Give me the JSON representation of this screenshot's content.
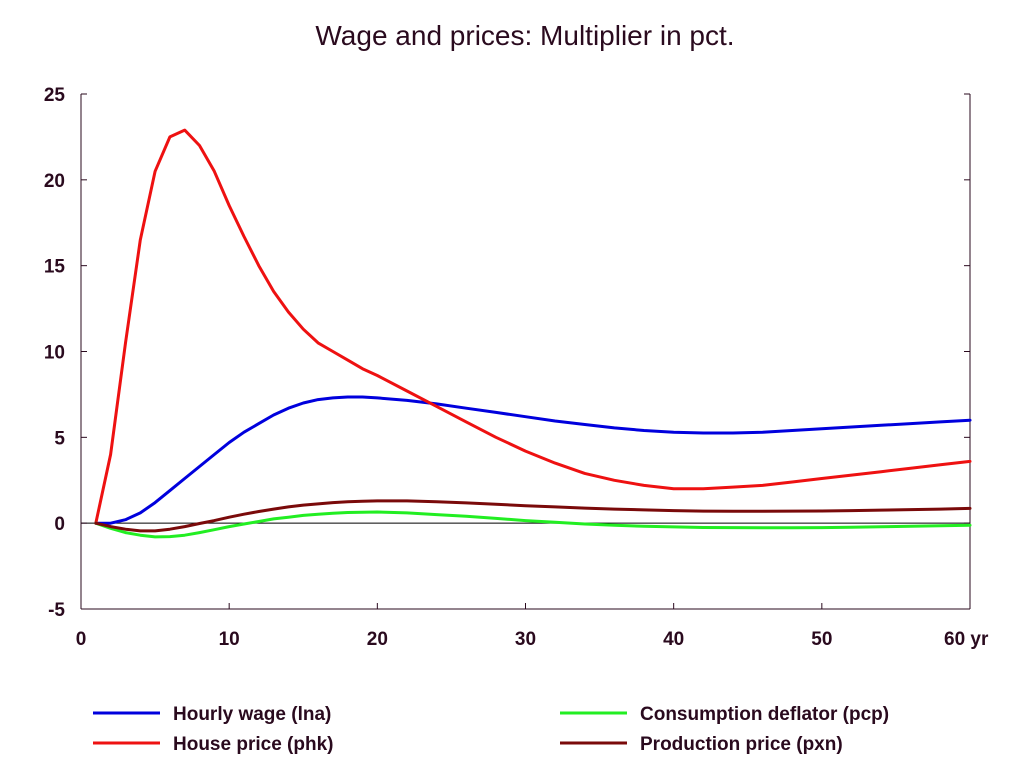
{
  "chart_data": {
    "type": "line",
    "title": "Wage and prices: Multiplier in pct.",
    "xlabel": "",
    "ylabel": "",
    "x_unit_label": "yr",
    "xlim": [
      0,
      60
    ],
    "ylim": [
      -5,
      25
    ],
    "x_ticks": [
      0,
      10,
      20,
      30,
      40,
      50,
      60
    ],
    "y_ticks": [
      -5,
      0,
      5,
      10,
      15,
      20,
      25
    ],
    "x_tick_labels": [
      "0",
      "10",
      "20",
      "30",
      "40",
      "50",
      "60 yr"
    ],
    "y_tick_labels": [
      "-5",
      "0",
      "5",
      "10",
      "15",
      "20",
      "25"
    ],
    "grid": false,
    "zero_line": true,
    "legend_position": "bottom",
    "series": [
      {
        "name": "Hourly wage (lna)",
        "color": "#0000dd",
        "x": [
          1,
          2,
          3,
          4,
          5,
          6,
          7,
          8,
          9,
          10,
          11,
          12,
          13,
          14,
          15,
          16,
          17,
          18,
          19,
          20,
          22,
          24,
          26,
          28,
          30,
          32,
          34,
          36,
          38,
          40,
          42,
          44,
          46,
          48,
          50,
          52,
          54,
          56,
          58,
          60
        ],
        "values": [
          0,
          0,
          0.2,
          0.6,
          1.2,
          1.9,
          2.6,
          3.3,
          4.0,
          4.7,
          5.3,
          5.8,
          6.3,
          6.7,
          7.0,
          7.2,
          7.3,
          7.35,
          7.35,
          7.3,
          7.15,
          6.95,
          6.7,
          6.45,
          6.2,
          5.95,
          5.75,
          5.55,
          5.4,
          5.3,
          5.25,
          5.25,
          5.3,
          5.4,
          5.5,
          5.6,
          5.7,
          5.8,
          5.9,
          6.0
        ]
      },
      {
        "name": "House price (phk)",
        "color": "#ee1111",
        "x": [
          1,
          2,
          3,
          4,
          5,
          6,
          7,
          8,
          9,
          10,
          11,
          12,
          13,
          14,
          15,
          16,
          17,
          18,
          19,
          20,
          22,
          24,
          26,
          28,
          30,
          32,
          34,
          36,
          38,
          40,
          42,
          44,
          46,
          48,
          50,
          52,
          54,
          56,
          58,
          60
        ],
        "values": [
          0,
          4.0,
          10.5,
          16.5,
          20.5,
          22.5,
          22.9,
          22.0,
          20.5,
          18.5,
          16.7,
          15.0,
          13.5,
          12.3,
          11.3,
          10.5,
          10.0,
          9.5,
          9.0,
          8.6,
          7.7,
          6.8,
          5.9,
          5.0,
          4.2,
          3.5,
          2.9,
          2.5,
          2.2,
          2.0,
          2.0,
          2.1,
          2.2,
          2.4,
          2.6,
          2.8,
          3.0,
          3.2,
          3.4,
          3.6
        ]
      },
      {
        "name": "Consumption deflator (pcp)",
        "color": "#22ee22",
        "x": [
          1,
          2,
          3,
          4,
          5,
          6,
          7,
          8,
          9,
          10,
          11,
          12,
          13,
          14,
          15,
          16,
          17,
          18,
          19,
          20,
          22,
          24,
          26,
          28,
          30,
          32,
          34,
          36,
          38,
          40,
          42,
          44,
          46,
          48,
          50,
          52,
          54,
          56,
          58,
          60
        ],
        "values": [
          0,
          -0.3,
          -0.55,
          -0.7,
          -0.8,
          -0.78,
          -0.7,
          -0.55,
          -0.38,
          -0.2,
          -0.05,
          0.1,
          0.25,
          0.35,
          0.45,
          0.52,
          0.58,
          0.62,
          0.64,
          0.65,
          0.6,
          0.5,
          0.4,
          0.28,
          0.15,
          0.05,
          -0.05,
          -0.12,
          -0.18,
          -0.22,
          -0.25,
          -0.26,
          -0.27,
          -0.27,
          -0.26,
          -0.24,
          -0.21,
          -0.18,
          -0.15,
          -0.12
        ]
      },
      {
        "name": "Production price (pxn)",
        "color": "#7a0a0a",
        "x": [
          1,
          2,
          3,
          4,
          5,
          6,
          7,
          8,
          9,
          10,
          11,
          12,
          13,
          14,
          15,
          16,
          17,
          18,
          19,
          20,
          22,
          24,
          26,
          28,
          30,
          32,
          34,
          36,
          38,
          40,
          42,
          44,
          46,
          48,
          50,
          52,
          54,
          56,
          58,
          60
        ],
        "values": [
          0,
          -0.2,
          -0.35,
          -0.45,
          -0.45,
          -0.35,
          -0.2,
          -0.02,
          0.15,
          0.35,
          0.52,
          0.68,
          0.82,
          0.95,
          1.05,
          1.12,
          1.2,
          1.25,
          1.28,
          1.3,
          1.3,
          1.25,
          1.18,
          1.1,
          1.02,
          0.95,
          0.88,
          0.82,
          0.77,
          0.73,
          0.7,
          0.69,
          0.69,
          0.7,
          0.71,
          0.73,
          0.76,
          0.79,
          0.82,
          0.86
        ]
      }
    ]
  }
}
